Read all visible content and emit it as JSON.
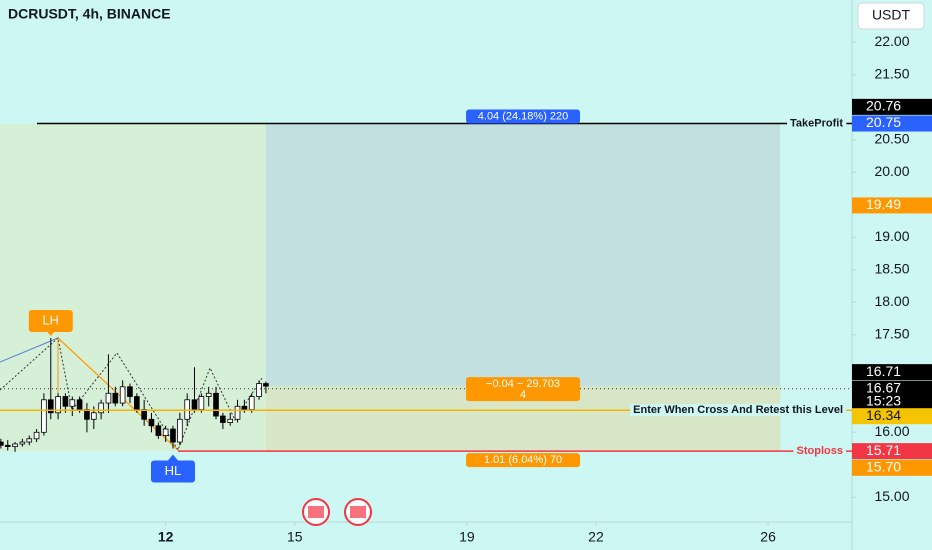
{
  "chart_data": {
    "type": "candlestick",
    "title": "DCRUSDT, 4h, BINANCE",
    "currency": "USDT",
    "x": [
      8.17,
      8.33,
      8.5,
      8.67,
      8.83,
      9,
      9.17,
      9.33,
      9.5,
      9.67,
      9.83,
      10,
      10.17,
      10.33,
      10.5,
      10.67,
      10.83,
      11,
      11.17,
      11.33,
      11.5,
      11.67,
      11.83,
      12,
      12.17,
      12.33,
      12.5,
      12.67,
      12.83,
      13,
      13.17,
      13.33,
      13.5,
      13.67,
      13.83,
      14,
      14.17,
      14.33
    ],
    "open": [
      15.85,
      15.8,
      15.78,
      15.82,
      15.85,
      15.9,
      16.0,
      16.5,
      16.3,
      16.55,
      16.4,
      16.5,
      16.35,
      16.2,
      16.3,
      16.45,
      16.6,
      16.45,
      16.7,
      16.55,
      16.35,
      16.2,
      16.1,
      15.95,
      16.05,
      15.85,
      16.2,
      16.5,
      16.35,
      16.55,
      16.6,
      16.25,
      16.15,
      16.2,
      16.4,
      16.35,
      16.55,
      16.75
    ],
    "high": [
      15.9,
      15.88,
      15.85,
      15.9,
      15.95,
      16.05,
      16.6,
      17.45,
      16.6,
      16.6,
      16.55,
      16.55,
      16.45,
      16.4,
      16.5,
      17.2,
      16.7,
      16.8,
      16.75,
      16.6,
      16.5,
      16.3,
      16.15,
      16.1,
      16.1,
      16.3,
      16.6,
      17.0,
      16.6,
      16.7,
      16.7,
      16.3,
      16.3,
      16.5,
      16.5,
      16.6,
      16.8,
      16.78
    ],
    "low": [
      15.75,
      15.72,
      15.7,
      15.78,
      15.8,
      15.85,
      15.95,
      16.2,
      16.2,
      16.3,
      16.25,
      16.3,
      16.0,
      16.05,
      16.2,
      16.3,
      16.4,
      16.4,
      16.45,
      16.3,
      16.1,
      16.0,
      15.9,
      15.85,
      15.75,
      15.8,
      16.1,
      16.3,
      16.3,
      16.4,
      16.2,
      16.05,
      16.1,
      16.15,
      16.3,
      16.3,
      16.5,
      16.6
    ],
    "close": [
      15.8,
      15.78,
      15.82,
      15.85,
      15.9,
      16.0,
      16.5,
      16.3,
      16.55,
      16.4,
      16.5,
      16.35,
      16.2,
      16.3,
      16.45,
      16.6,
      16.45,
      16.7,
      16.55,
      16.35,
      16.2,
      16.1,
      15.95,
      16.05,
      15.85,
      16.2,
      16.5,
      16.35,
      16.55,
      16.6,
      16.25,
      16.15,
      16.2,
      16.4,
      16.35,
      16.55,
      16.75,
      16.71
    ],
    "up_color": "#ffffff",
    "down_color": "#000000",
    "xlim": [
      8.15,
      27.95
    ],
    "xticks": [
      12,
      15,
      19,
      22,
      26
    ],
    "ylim": [
      14.62,
      22.65
    ],
    "yticks": [
      {
        "value": 22,
        "label": "22.00"
      },
      {
        "value": 21.5,
        "label": "21.50"
      },
      {
        "value": 20.5,
        "label": "20.50"
      },
      {
        "value": 20,
        "label": "20.00"
      },
      {
        "value": 19,
        "label": "19.00"
      },
      {
        "value": 18.5,
        "label": "18.50"
      },
      {
        "value": 18,
        "label": "18.00"
      },
      {
        "value": 17.5,
        "label": "17.50"
      },
      {
        "value": 16,
        "label": "16.00"
      },
      {
        "value": 15,
        "label": "15.00"
      }
    ],
    "position": {
      "start": 14.33,
      "end": 26.28,
      "entry": 16.71,
      "target": 20.75,
      "stop": 15.71,
      "target_label": "4.04 (24.18%) 220",
      "entry_label": [
        "−0.04 − 29.703",
        "4"
      ],
      "stop_label": "1.01 (6.04%) 70"
    },
    "levels": [
      {
        "name": "TakeProfit",
        "value": 20.75,
        "color": "#000000"
      },
      {
        "name": "Enter When Cross And Retest this Level",
        "value": 16.34,
        "color": "#f5b400"
      },
      {
        "name": "Stoploss",
        "value": 15.71,
        "color": "#f23645"
      }
    ],
    "current_price": 16.67,
    "markers": [
      {
        "value": 20.76,
        "label": "20.76",
        "color": "#000000"
      },
      {
        "value": 20.75,
        "label": "20.75",
        "color": "#2962ff"
      },
      {
        "value": 19.49,
        "label": "19.49",
        "color": "#ff9800"
      },
      {
        "value": 16.71,
        "label": "16.71",
        "color": "#000000"
      },
      {
        "value": 16.67,
        "label": "16.67",
        "sub": "15:23",
        "color": "#000000"
      },
      {
        "value": 16.34,
        "label": "16.34",
        "color": "#f5c400"
      },
      {
        "value": 15.71,
        "label": "15.71",
        "color": "#f23645"
      },
      {
        "value": 15.7,
        "label": "15.70",
        "color": "#ff9800"
      }
    ],
    "annotations": [
      {
        "text": "LH",
        "x": 9.33,
        "value": 17.45,
        "color": "#ff9800"
      },
      {
        "text": "HL",
        "x": 12.17,
        "value": 15.75,
        "color": "#2962ff"
      }
    ]
  }
}
